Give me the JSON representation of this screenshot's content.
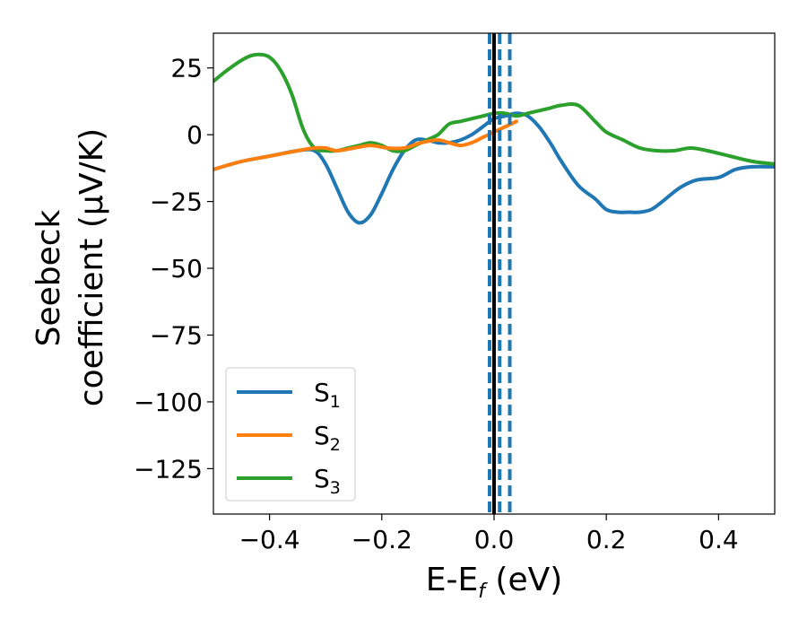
{
  "chart_data": {
    "type": "line",
    "xlabel": "E-E",
    "xlabel_sub": "f",
    "xlabel_unit": " (eV)",
    "ylabel_line1": "Seebeck",
    "ylabel_line2": "coefficient  (μV/K)",
    "xlim": [
      -0.5,
      0.5
    ],
    "ylim": [
      -142,
      38
    ],
    "xticks": [
      -0.4,
      -0.2,
      0.0,
      0.2,
      0.4
    ],
    "xtick_labels": [
      "−0.4",
      "−0.2",
      "0.0",
      "0.2",
      "0.4"
    ],
    "yticks": [
      25,
      0,
      -25,
      -50,
      -75,
      -100,
      -125
    ],
    "ytick_labels": [
      "25",
      "0",
      "−25",
      "−50",
      "−75",
      "−100",
      "−125"
    ],
    "grid": false,
    "legend_position": "lower-left",
    "vlines": [
      {
        "x": 0.0,
        "style": "solid",
        "color": "#000000"
      },
      {
        "x": -0.008,
        "style": "dashed",
        "color": "#1f77b4"
      },
      {
        "x": 0.01,
        "style": "dashed",
        "color": "#1f77b4"
      },
      {
        "x": 0.028,
        "style": "dashed",
        "color": "#1f77b4"
      }
    ],
    "series": [
      {
        "name": "S",
        "subscript": "1",
        "color": "#1f77b4",
        "x": [
          -0.5,
          -0.45,
          -0.4,
          -0.35,
          -0.32,
          -0.3,
          -0.28,
          -0.26,
          -0.24,
          -0.22,
          -0.2,
          -0.18,
          -0.16,
          -0.14,
          -0.12,
          -0.1,
          -0.08,
          -0.06,
          -0.04,
          -0.02,
          0.0,
          0.02,
          0.04,
          0.06,
          0.08,
          0.1,
          0.12,
          0.15,
          0.18,
          0.2,
          0.22,
          0.24,
          0.26,
          0.28,
          0.3,
          0.33,
          0.36,
          0.4,
          0.43,
          0.46,
          0.5
        ],
        "y": [
          -13,
          -10,
          -8,
          -6,
          -6,
          -11,
          -20,
          -29,
          -33,
          -30,
          -22,
          -13,
          -6,
          -2,
          -2,
          -3,
          -3,
          -2,
          0,
          3,
          6,
          7,
          8,
          7,
          3,
          -3,
          -10,
          -19,
          -24,
          -28,
          -29,
          -29,
          -29,
          -28,
          -25,
          -20,
          -17,
          -16,
          -13,
          -12,
          -12
        ]
      },
      {
        "name": "S",
        "subscript": "2",
        "color": "#ff7f0e",
        "x": [
          -0.5,
          -0.45,
          -0.4,
          -0.35,
          -0.32,
          -0.3,
          -0.28,
          -0.25,
          -0.22,
          -0.19,
          -0.16,
          -0.13,
          -0.1,
          -0.08,
          -0.06,
          -0.04,
          -0.02,
          0.0,
          0.02,
          0.04
        ],
        "y": [
          -13,
          -10,
          -8,
          -6,
          -5,
          -5,
          -6,
          -5,
          -4,
          -5,
          -5,
          -3,
          -2,
          -3,
          -4,
          -3,
          -1,
          1,
          3,
          5
        ]
      },
      {
        "name": "S",
        "subscript": "3",
        "color": "#2ca02c",
        "x": [
          -0.5,
          -0.47,
          -0.44,
          -0.42,
          -0.4,
          -0.38,
          -0.36,
          -0.34,
          -0.32,
          -0.3,
          -0.28,
          -0.26,
          -0.24,
          -0.22,
          -0.2,
          -0.18,
          -0.16,
          -0.14,
          -0.12,
          -0.1,
          -0.08,
          -0.06,
          -0.04,
          -0.02,
          0.0,
          0.02,
          0.04,
          0.06,
          0.08,
          0.1,
          0.12,
          0.15,
          0.18,
          0.2,
          0.23,
          0.26,
          0.29,
          0.32,
          0.35,
          0.38,
          0.42,
          0.46,
          0.5
        ],
        "y": [
          20,
          25,
          29,
          30,
          29,
          24,
          15,
          2,
          -5,
          -6,
          -6,
          -5,
          -4,
          -3,
          -4,
          -6,
          -6,
          -4,
          -2,
          0,
          4,
          5,
          6,
          7,
          8,
          8,
          7,
          8,
          9,
          10,
          11,
          11,
          5,
          1,
          -2,
          -5,
          -6,
          -6,
          -5,
          -6,
          -8,
          -10,
          -11
        ]
      }
    ]
  }
}
